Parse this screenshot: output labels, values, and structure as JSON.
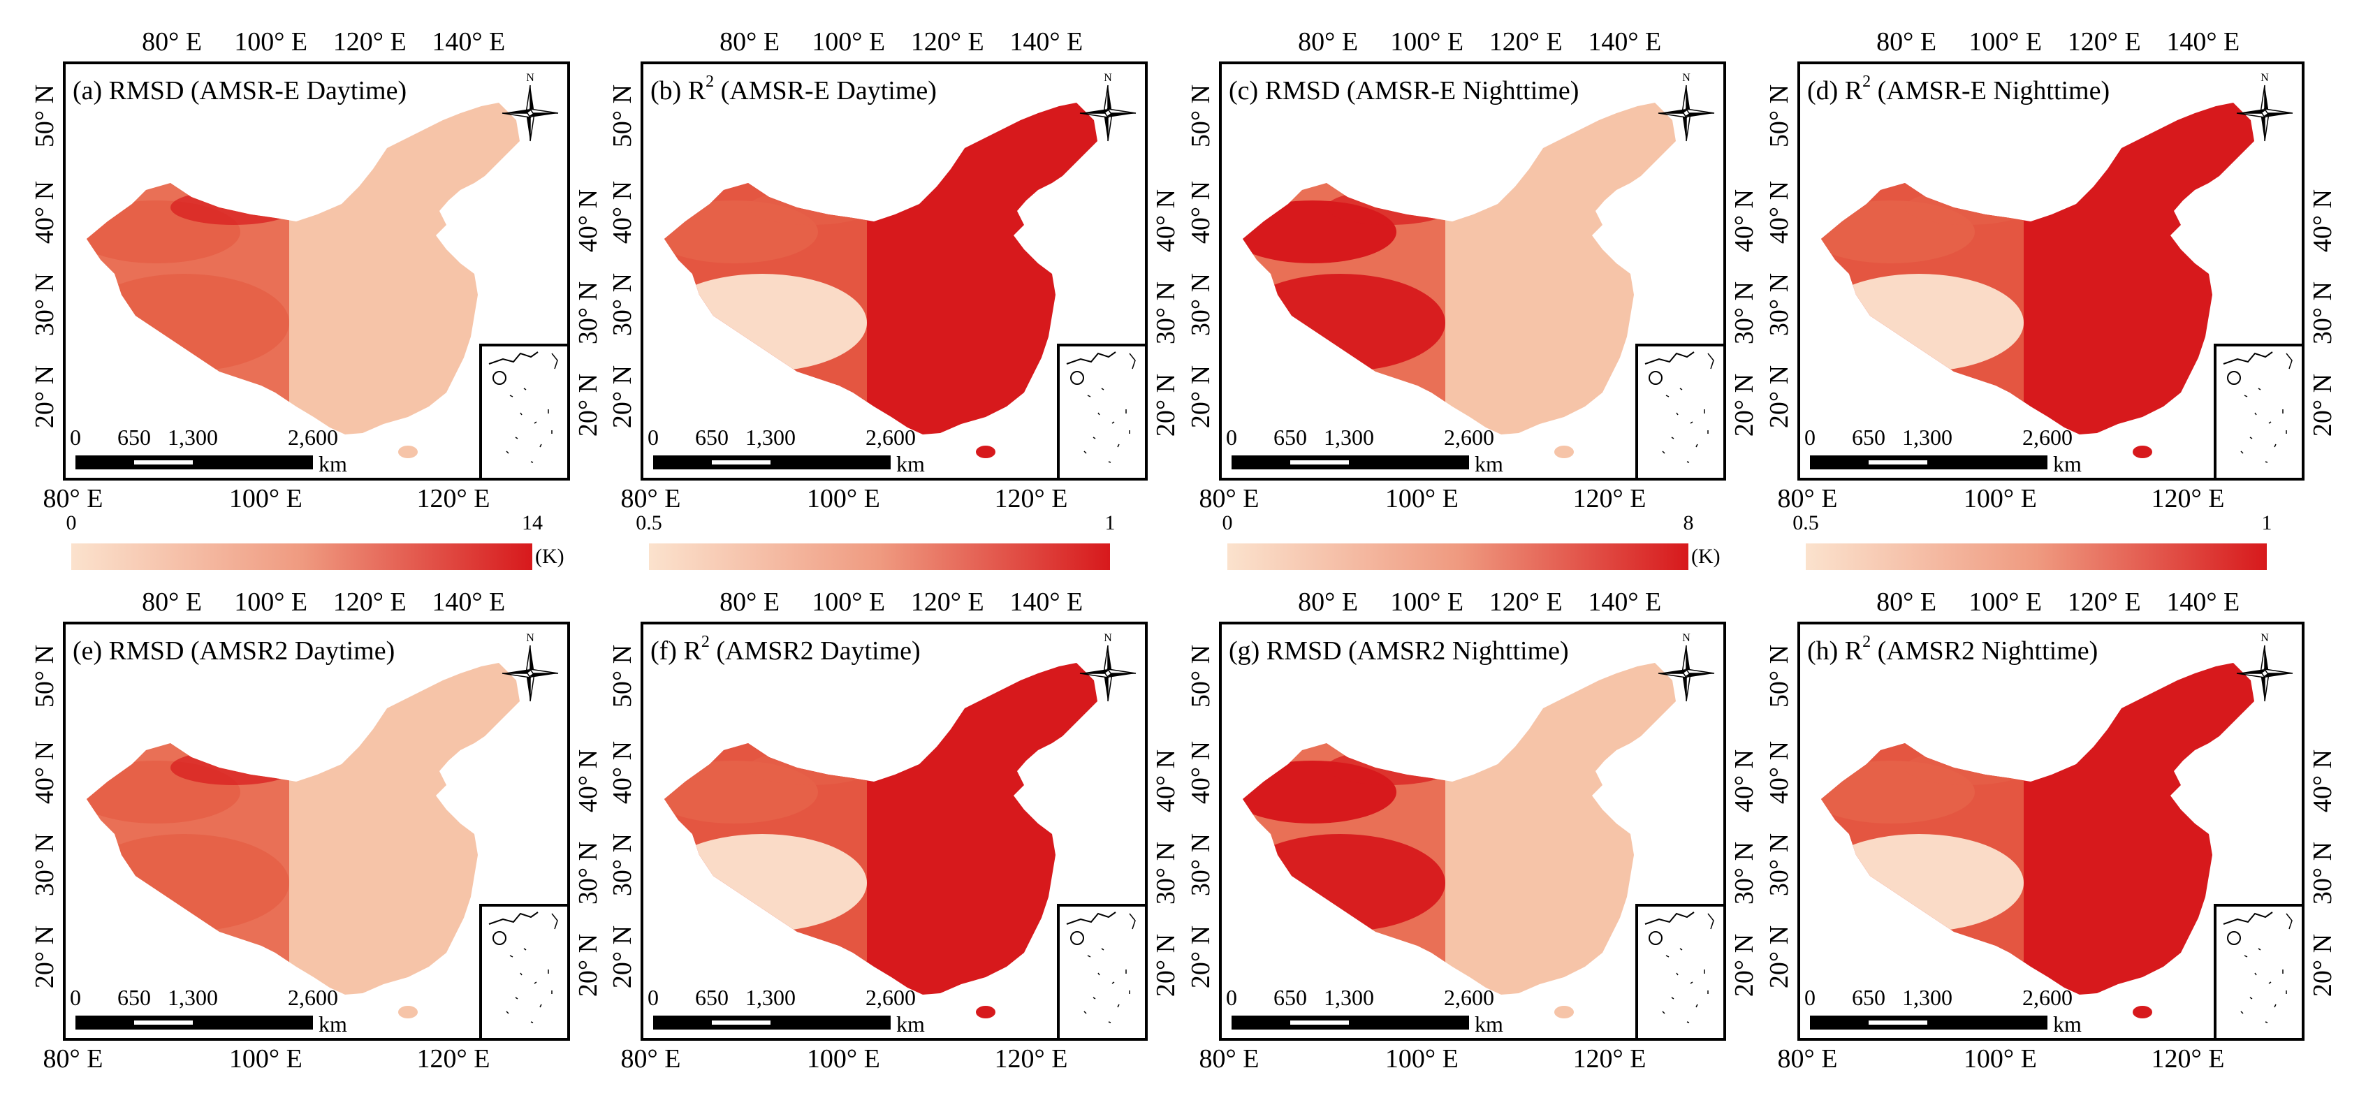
{
  "figure": {
    "lon_labels_top": [
      "80° E",
      "100° E",
      "120° E",
      "140° E"
    ],
    "lon_labels_bottom": [
      "80° E",
      "100° E",
      "120° E"
    ],
    "lat_labels": [
      "50° N",
      "40° N",
      "30° N",
      "20° N"
    ],
    "scalebar": {
      "ticks": [
        "0",
        "650",
        "1,300",
        "2,600"
      ],
      "unit": "km"
    },
    "north_letter": "N",
    "colors": {
      "low": "#f9dcc4",
      "high": "#d7191c",
      "mid": "#ea7c65"
    }
  },
  "panels": [
    {
      "id": "a",
      "title": "(a) RMSD (AMSR-E Daytime)",
      "title_pre": "(a) RMSD (AMSR-E Daytime)",
      "sup": "",
      "title_post": "",
      "metric": "rmsd",
      "sensor": "AMSR-E",
      "time": "day"
    },
    {
      "id": "b",
      "title": "(b) R2 (AMSR-E Daytime)",
      "title_pre": "(b) R",
      "sup": "2",
      "title_post": " (AMSR-E Daytime)",
      "metric": "r2",
      "sensor": "AMSR-E",
      "time": "day"
    },
    {
      "id": "c",
      "title": "(c) RMSD (AMSR-E Nighttime)",
      "title_pre": "(c) RMSD (AMSR-E Nighttime)",
      "sup": "",
      "title_post": "",
      "metric": "rmsd",
      "sensor": "AMSR-E",
      "time": "night"
    },
    {
      "id": "d",
      "title": "(d) R2 (AMSR-E Nighttime)",
      "title_pre": "(d) R",
      "sup": "2",
      "title_post": " (AMSR-E Nighttime)",
      "metric": "r2",
      "sensor": "AMSR-E",
      "time": "night"
    },
    {
      "id": "e",
      "title": "(e) RMSD (AMSR2 Daytime)",
      "title_pre": "(e) RMSD (AMSR2 Daytime)",
      "sup": "",
      "title_post": "",
      "metric": "rmsd",
      "sensor": "AMSR2",
      "time": "day"
    },
    {
      "id": "f",
      "title": "(f) R2 (AMSR2 Daytime)",
      "title_pre": "(f) R",
      "sup": "2",
      "title_post": " (AMSR2 Daytime)",
      "metric": "r2",
      "sensor": "AMSR2",
      "time": "day"
    },
    {
      "id": "g",
      "title": "(g) RMSD (AMSR2 Nighttime)",
      "title_pre": "(g) RMSD (AMSR2 Nighttime)",
      "sup": "",
      "title_post": "",
      "metric": "rmsd",
      "sensor": "AMSR2",
      "time": "night"
    },
    {
      "id": "h",
      "title": "(h) R2 (AMSR2 Nighttime)",
      "title_pre": "(h) R",
      "sup": "2",
      "title_post": " (AMSR2 Nighttime)",
      "metric": "r2",
      "sensor": "AMSR2",
      "time": "night"
    }
  ],
  "colorbars": [
    {
      "min": "0",
      "max": "14",
      "unit": "(K)"
    },
    {
      "min": "0.5",
      "max": "1",
      "unit": ""
    },
    {
      "min": "0",
      "max": "8",
      "unit": "(K)"
    },
    {
      "min": "0.5",
      "max": "1",
      "unit": ""
    }
  ]
}
